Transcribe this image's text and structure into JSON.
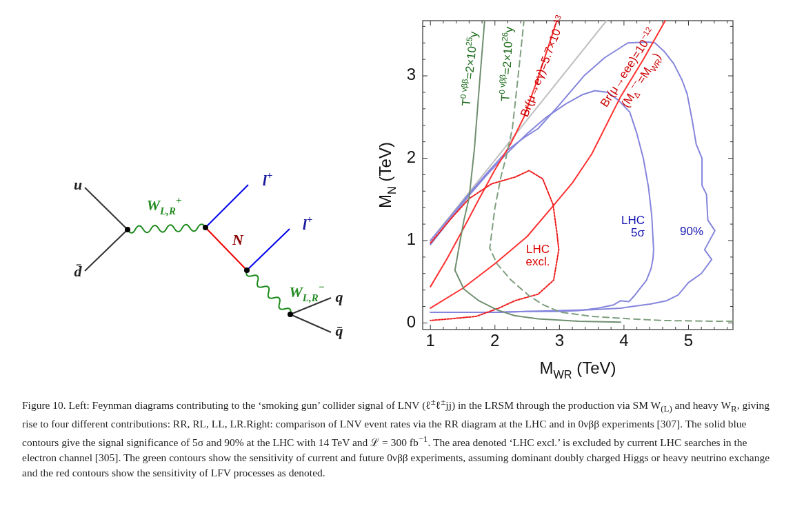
{
  "chart_data": [
    {
      "type": "other",
      "annotations": [
        "u",
        "d̄",
        "W$_{L,R}$$^{+}$",
        "l$^{+}$",
        "N",
        "l$^{+}$",
        "W$_{L,R}$$^{−}$",
        "q",
        "q̄"
      ]
    },
    {
      "type": "line",
      "xlabel": "M$_{WR}$ (TeV)",
      "ylabel": "M$_{N}$ (TeV)",
      "xlim": [
        0.88,
        5.69
      ],
      "ylim": [
        -0.08,
        3.67
      ],
      "xticks": [
        1,
        {
          "value": 1.2,
          "label": null
        },
        {
          "value": 1.4,
          "label": null
        },
        {
          "value": 1.6,
          "label": null
        },
        {
          "value": 1.8,
          "label": null
        },
        2,
        {
          "value": 2.2,
          "label": null
        },
        {
          "value": 2.4,
          "label": null
        },
        {
          "value": 2.6,
          "label": null
        },
        {
          "value": 2.8,
          "label": null
        },
        3,
        {
          "value": 3.2,
          "label": null
        },
        {
          "value": 3.4,
          "label": null
        },
        {
          "value": 3.6,
          "label": null
        },
        {
          "value": 3.8,
          "label": null
        },
        4,
        {
          "value": 4.2,
          "label": null
        },
        {
          "value": 4.4,
          "label": null
        },
        {
          "value": 4.6,
          "label": null
        },
        {
          "value": 4.8,
          "label": null
        },
        5,
        {
          "value": 5.2,
          "label": null
        },
        {
          "value": 5.4,
          "label": null
        },
        {
          "value": 5.6,
          "label": null
        }
      ],
      "yticks": [
        0,
        {
          "value": 0.2,
          "label": null
        },
        {
          "value": 0.4,
          "label": null
        },
        {
          "value": 0.6,
          "label": null
        },
        {
          "value": 0.8,
          "label": null
        },
        1,
        {
          "value": 1.2,
          "label": null
        },
        {
          "value": 1.4,
          "label": null
        },
        {
          "value": 1.6,
          "label": null
        },
        {
          "value": 1.8,
          "label": null
        },
        2,
        {
          "value": 2.2,
          "label": null
        },
        {
          "value": 2.4,
          "label": null
        },
        {
          "value": 2.6,
          "label": null
        },
        {
          "value": 2.8,
          "label": null
        },
        3,
        {
          "value": 3.2,
          "label": null
        },
        {
          "value": 3.4,
          "label": null
        },
        {
          "value": 3.6,
          "label": null
        }
      ],
      "marker": "none",
      "series": [
        {
          "color": "#c0c0c0",
          "line_style": "solid",
          "x": [
            1.0,
            3.73
          ],
          "values": [
            1.0,
            3.67
          ]
        },
        {
          "color": "#8585dd",
          "line_style": "solid",
          "x": [
            1.0,
            1.3,
            1.6,
            1.9,
            2.2,
            2.45,
            2.67,
            3.0,
            3.38,
            3.7,
            4.06,
            4.38,
            4.48,
            4.62,
            4.77,
            4.9,
            4.98,
            5.06,
            5.12,
            5.21,
            5.21,
            5.28,
            5.3,
            5.41,
            5.25,
            5.36,
            5.2,
            5.0,
            4.84,
            4.66,
            4.41,
            4.13,
            3.95,
            3.5,
            3.0,
            2.5,
            2.0,
            1.5,
            1.0
          ],
          "values": [
            1.0,
            1.28,
            1.57,
            1.84,
            2.1,
            2.25,
            2.36,
            2.65,
            3.0,
            3.22,
            3.4,
            3.41,
            3.4,
            3.3,
            3.15,
            2.95,
            2.78,
            2.45,
            2.17,
            2.0,
            1.67,
            1.56,
            1.25,
            1.12,
            0.89,
            0.77,
            0.6,
            0.49,
            0.34,
            0.27,
            0.23,
            0.2,
            0.18,
            0.16,
            0.15,
            0.14,
            0.13,
            0.13,
            0.13
          ]
        },
        {
          "color": "#8585dd",
          "line_style": "solid",
          "x": [
            1.0,
            1.3,
            1.6,
            1.9,
            2.2,
            2.5,
            2.8,
            3.1,
            3.35,
            3.55,
            3.75,
            3.92,
            4.09,
            4.2,
            4.3,
            4.38,
            4.43,
            4.46,
            4.45,
            4.42,
            4.35,
            4.25,
            4.16,
            4.08,
            3.95,
            3.84,
            3.6,
            3.3,
            3.0,
            2.5,
            2.0,
            1.5,
            1.0
          ],
          "values": [
            0.95,
            1.25,
            1.55,
            1.82,
            2.07,
            2.3,
            2.5,
            2.66,
            2.77,
            2.82,
            2.8,
            2.7,
            2.56,
            2.3,
            2.0,
            1.65,
            1.31,
            0.89,
            0.78,
            0.66,
            0.52,
            0.42,
            0.33,
            0.26,
            0.27,
            0.22,
            0.18,
            0.15,
            0.14,
            0.14,
            0.13,
            0.13,
            0.13
          ]
        },
        {
          "color": "#ff3030",
          "line_style": "solid",
          "x": [
            1.0,
            1.25,
            1.5,
            1.75,
            2.0,
            2.24,
            2.45,
            2.67,
            2.96
          ],
          "values": [
            0.44,
            0.77,
            1.13,
            1.5,
            1.86,
            2.17,
            2.5,
            2.98,
            3.67
          ]
        },
        {
          "color": "#ff3030",
          "line_style": "solid",
          "x": [
            1.0,
            1.5,
            2.0,
            2.5,
            2.9,
            3.2,
            3.5,
            3.95,
            4.3,
            4.64
          ],
          "values": [
            0.18,
            0.42,
            0.72,
            1.05,
            1.42,
            1.7,
            2.05,
            2.75,
            3.2,
            3.67
          ]
        },
        {
          "color": "#ee1c1c",
          "line_style": "dotted",
          "x": [
            1.0,
            1.3,
            1.6,
            1.95,
            2.31,
            2.53,
            2.74,
            2.9,
            2.96,
            2.99,
            2.91,
            2.67,
            2.31,
            2.06,
            1.71,
            1.3,
            1.0
          ],
          "values": [
            0.97,
            1.25,
            1.51,
            1.69,
            1.77,
            1.85,
            1.75,
            1.44,
            1.1,
            0.89,
            0.52,
            0.35,
            0.27,
            0.18,
            0.08,
            0.05,
            0.03
          ]
        },
        {
          "color": "#6f8f6f",
          "line_style": "solid",
          "x": [
            3.95,
            3.3,
            2.67,
            2.3,
            2.03,
            1.75,
            1.52,
            1.38,
            1.45,
            1.52,
            1.6,
            1.68,
            1.76,
            1.84
          ],
          "values": [
            0.01,
            0.02,
            0.05,
            0.09,
            0.16,
            0.27,
            0.41,
            0.64,
            0.95,
            1.25,
            1.52,
            2.1,
            2.9,
            3.67
          ]
        },
        {
          "color": "#7f9f7f",
          "line_style": "dashed",
          "x": [
            5.69,
            5.44,
            4.6,
            4.09,
            3.5,
            3.02,
            2.75,
            2.53,
            2.25,
            2.03,
            1.92,
            2.0,
            2.1,
            2.17,
            2.27,
            2.36,
            2.45
          ],
          "values": [
            0.02,
            0.02,
            0.03,
            0.05,
            0.08,
            0.13,
            0.22,
            0.33,
            0.52,
            0.72,
            0.91,
            1.4,
            1.8,
            2.0,
            2.36,
            3.0,
            3.67
          ]
        }
      ],
      "annotations": [
        "T$^{0 νββ}$=2×10$^{25}$y",
        "T$^{0 νββ}$=2×10$^{26}$y",
        "Br(μ→eγ)=5.7×10$^{−13}$",
        "Br(μ→eee)=10$^{−12}$",
        "(M$_{Δ}$$^{−−}$=M$_{WR}$)",
        "LHC\nexcl.",
        "LHC\n5σ",
        "90%",
        "Figure 10. Left: Feynman diagrams contributing to the ‘smoking gun’ collider signal of LNV (ℓ$^{±}$ℓ$^{±}$jj) in the LRSM through the production via SM W$_{(L)}$ and heavy W$_{R}$, giving rise to four different contributions: RR, RL, LL, LR.Right: comparison of LNV event rates via the RR diagram at the LHC and in 0νββ experiments [307]. The solid blue contours give the signal significance of 5σ and 90% at the LHC with 14 TeV and ℒ = 300 fb$^{−1}$. The area denoted ‘LHC excl.’ is excluded by current LHC searches in the electron channel [305]. The green contours show the sensitivity of current and future 0νββ experiments, assuming dominant doubly charged Higgs or heavy neutrino exchange and the red contours show the sensitivity of LFV processes as denoted."
      ]
    }
  ]
}
